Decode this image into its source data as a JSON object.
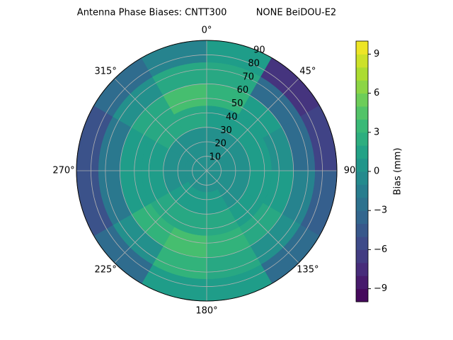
{
  "chart_data": {
    "type": "polar-contour",
    "title": "Antenna Phase Biases: CNTT300          NONE BeiDOU-E2",
    "colormap": "viridis",
    "azimuth_edges": [
      0,
      30,
      60,
      90,
      120,
      150,
      180,
      210,
      240,
      270,
      300,
      330,
      360
    ],
    "zenith_edges": [
      0,
      15,
      30,
      45,
      60,
      75,
      90
    ],
    "values": [
      [
        0,
        0,
        1,
        3,
        2,
        1
      ],
      [
        0,
        0,
        1,
        1,
        -3,
        -7
      ],
      [
        0,
        0,
        1,
        0,
        -3,
        -6
      ],
      [
        0,
        0,
        1,
        1,
        -1,
        -4
      ],
      [
        0,
        0,
        1,
        2,
        0,
        -3
      ],
      [
        0,
        1,
        2,
        3,
        2,
        1
      ],
      [
        0,
        1,
        2,
        4,
        3,
        1
      ],
      [
        0,
        1,
        2,
        3,
        0,
        -3
      ],
      [
        0,
        0,
        1,
        1,
        -2,
        -5
      ],
      [
        0,
        0,
        1,
        1,
        -2,
        -5
      ],
      [
        0,
        0,
        2,
        2,
        0,
        -3
      ],
      [
        0,
        0,
        2,
        4,
        2,
        -1
      ]
    ],
    "rlim": [
      0,
      90
    ],
    "rticks": [
      10,
      20,
      30,
      40,
      50,
      60,
      70,
      80,
      90
    ],
    "thetaticks": [
      {
        "value": 0,
        "label": "0°"
      },
      {
        "value": 45,
        "label": "45°"
      },
      {
        "value": 90,
        "label": "90"
      },
      {
        "value": 135,
        "label": "135°"
      },
      {
        "value": 180,
        "label": "180°"
      },
      {
        "value": 225,
        "label": "225°"
      },
      {
        "value": 270,
        "label": "270°"
      },
      {
        "value": 315,
        "label": "315°"
      }
    ],
    "grid": true,
    "colorbar": {
      "label": "Bias (mm)",
      "clim": [
        -10,
        10
      ],
      "ticks": [
        {
          "value": -9,
          "label": "−9"
        },
        {
          "value": -6,
          "label": "−6"
        },
        {
          "value": -3,
          "label": "−3"
        },
        0,
        3,
        6,
        9
      ]
    }
  }
}
